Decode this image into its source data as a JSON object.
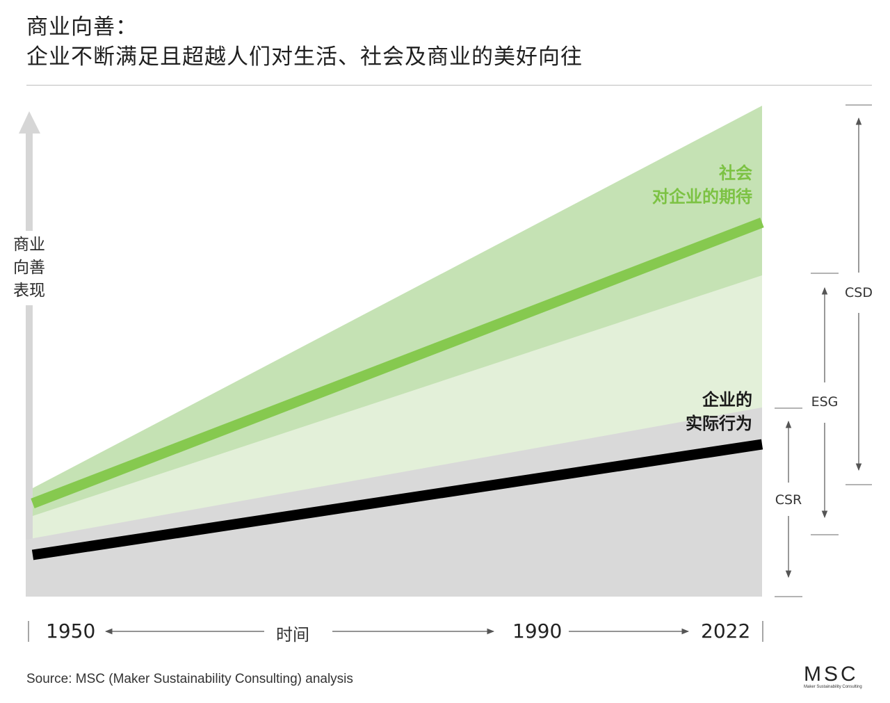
{
  "title": {
    "line1": "商业向善：",
    "line2": "企业不断满足且超越人们对生活、社会及商业的美好向往"
  },
  "y_axis": {
    "label_lines": [
      "商业",
      "向善",
      "表现"
    ]
  },
  "series": {
    "expectation_label": [
      "社会",
      "对企业的期待"
    ],
    "actual_label": [
      "企业的",
      "实际行为"
    ]
  },
  "ranges": {
    "csd": "CSD",
    "esg": "ESG",
    "csr": "CSR"
  },
  "x_axis": {
    "start": "1950",
    "middle": "1990",
    "end": "2022",
    "label": "时间"
  },
  "source": "Source: MSC (Maker Sustainability Consulting) analysis",
  "logo": {
    "mark": "MSC",
    "subtitle": "Maker Sustainability Consulting"
  },
  "colors": {
    "expectation_line": "#86c94f",
    "actual_line": "#000000",
    "band_outer": "#c5e2b4",
    "band_inner": "#e3f0d9",
    "band_gray": "#d9d9d9",
    "y_arrow": "#d6d6d6"
  }
}
